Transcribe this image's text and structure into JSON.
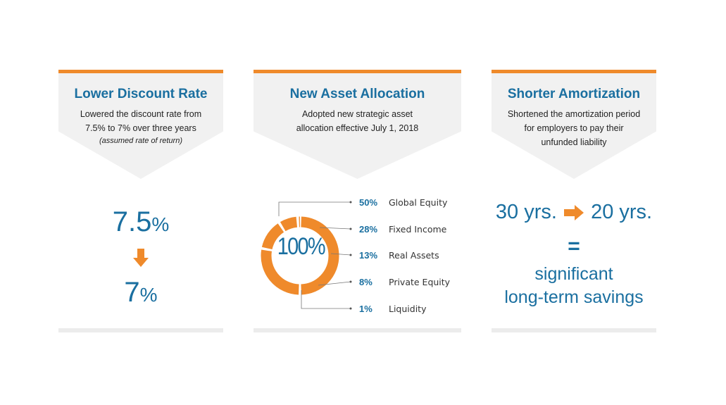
{
  "colors": {
    "orange": "#ef8a2b",
    "blue": "#1a6fa0",
    "chevron_bg": "#f1f1f1"
  },
  "panels": [
    {
      "title": "Lower Discount Rate",
      "desc_lines": [
        "Lowered the discount rate from",
        "7.5% to 7% over three years"
      ],
      "note": "(assumed rate of return)",
      "from_value": "7.5",
      "to_value": "7",
      "pct_sign": "%"
    },
    {
      "title": "New Asset Allocation",
      "desc_lines": [
        "Adopted new strategic asset",
        "allocation effective July 1, 2018"
      ],
      "center_label": "100%",
      "allocations": [
        {
          "pct": "50%",
          "label": "Global Equity",
          "value": 50
        },
        {
          "pct": "28%",
          "label": "Fixed Income",
          "value": 28
        },
        {
          "pct": "13%",
          "label": "Real Assets",
          "value": 13
        },
        {
          "pct": "8%",
          "label": "Private Equity",
          "value": 8
        },
        {
          "pct": "1%",
          "label": "Liquidity",
          "value": 1
        }
      ]
    },
    {
      "title": "Shorter Amortization",
      "desc_lines": [
        "Shortened the amortization period",
        "for employers to pay their",
        "unfunded liability"
      ],
      "from_years": "30 yrs.",
      "to_years": "20 yrs.",
      "equals": "=",
      "result_lines": [
        "significant",
        "long-term savings"
      ]
    }
  ]
}
